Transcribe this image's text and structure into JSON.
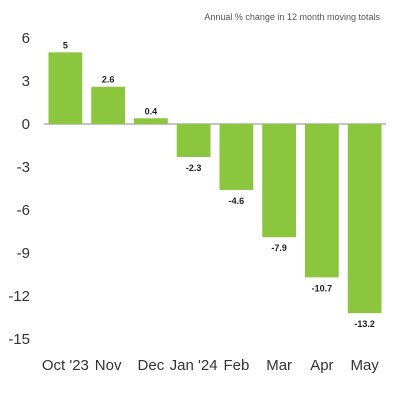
{
  "chart_data": {
    "type": "bar",
    "title": "",
    "subtitle": "Annual % change in 12 month moving totals",
    "xlabel": "",
    "ylabel": "",
    "categories": [
      "Oct '23",
      "Nov",
      "Dec",
      "Jan '24",
      "Feb",
      "Mar",
      "Apr",
      "May"
    ],
    "values": [
      5,
      2.6,
      0.4,
      -2.3,
      -4.6,
      -7.9,
      -10.7,
      -13.2
    ],
    "data_labels": [
      "5",
      "2.6",
      "0.4",
      "-2.3",
      "-4.6",
      "-7.9",
      "-10.7",
      "-13.2"
    ],
    "yticks": [
      6,
      3,
      0,
      -3,
      -6,
      -9,
      -12,
      -15
    ],
    "ytick_labels": [
      "6",
      "3",
      "0",
      "-3",
      "-6",
      "-9",
      "-12",
      "-15"
    ],
    "ylim": [
      -15,
      6
    ],
    "grid": false,
    "legend": "none",
    "bar_color": "#8cc63f",
    "zero_line_color": "#8a8a8a"
  }
}
